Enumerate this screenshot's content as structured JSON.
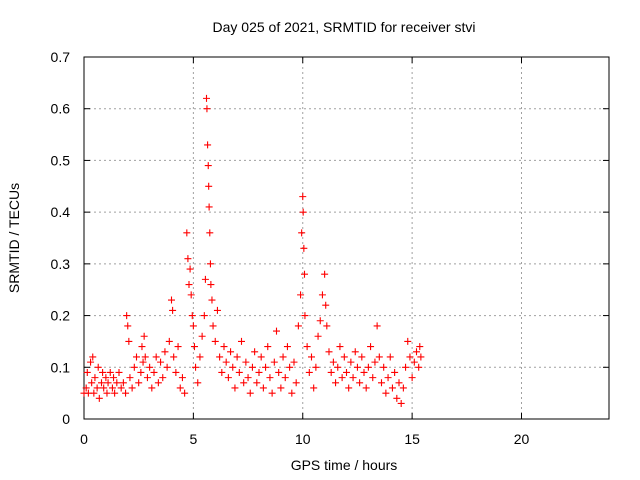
{
  "chart_data": {
    "type": "scatter",
    "title": "Day 025 of 2021, SRMTID for receiver stvi",
    "xlabel": "GPS time / hours",
    "ylabel": "SRMTID / TECUs",
    "xlim": [
      0,
      24
    ],
    "ylim": [
      0,
      0.7
    ],
    "x_ticks": [
      0,
      5,
      10,
      15,
      20
    ],
    "x_tick_labels": [
      "0",
      "5",
      "10",
      "15",
      "20"
    ],
    "y_ticks": [
      0,
      0.1,
      0.2,
      0.3,
      0.4,
      0.5,
      0.6,
      0.7
    ],
    "y_tick_labels": [
      "0",
      "0.1",
      "0.2",
      "0.3",
      "0.4",
      "0.5",
      "0.6",
      "0.7"
    ],
    "grid": true,
    "marker": "plus",
    "color": "#ff0000",
    "series": [
      {
        "name": "SRMTID",
        "points": [
          [
            0.0,
            0.05
          ],
          [
            0.1,
            0.06
          ],
          [
            0.15,
            0.09
          ],
          [
            0.2,
            0.05
          ],
          [
            0.3,
            0.11
          ],
          [
            0.35,
            0.07
          ],
          [
            0.4,
            0.12
          ],
          [
            0.45,
            0.05
          ],
          [
            0.5,
            0.08
          ],
          [
            0.6,
            0.06
          ],
          [
            0.65,
            0.1
          ],
          [
            0.7,
            0.04
          ],
          [
            0.8,
            0.07
          ],
          [
            0.85,
            0.09
          ],
          [
            0.9,
            0.06
          ],
          [
            1.0,
            0.08
          ],
          [
            1.05,
            0.05
          ],
          [
            1.1,
            0.07
          ],
          [
            1.2,
            0.09
          ],
          [
            1.3,
            0.06
          ],
          [
            1.35,
            0.08
          ],
          [
            1.4,
            0.05
          ],
          [
            1.5,
            0.07
          ],
          [
            1.6,
            0.09
          ],
          [
            1.7,
            0.06
          ],
          [
            1.8,
            0.07
          ],
          [
            1.9,
            0.05
          ],
          [
            1.95,
            0.2
          ],
          [
            2.0,
            0.18
          ],
          [
            2.05,
            0.15
          ],
          [
            2.1,
            0.08
          ],
          [
            2.2,
            0.06
          ],
          [
            2.3,
            0.1
          ],
          [
            2.4,
            0.12
          ],
          [
            2.5,
            0.07
          ],
          [
            2.6,
            0.09
          ],
          [
            2.65,
            0.14
          ],
          [
            2.7,
            0.11
          ],
          [
            2.75,
            0.16
          ],
          [
            2.8,
            0.12
          ],
          [
            2.9,
            0.08
          ],
          [
            3.0,
            0.1
          ],
          [
            3.1,
            0.06
          ],
          [
            3.2,
            0.09
          ],
          [
            3.3,
            0.12
          ],
          [
            3.4,
            0.07
          ],
          [
            3.5,
            0.11
          ],
          [
            3.6,
            0.08
          ],
          [
            3.7,
            0.13
          ],
          [
            3.8,
            0.1
          ],
          [
            3.9,
            0.15
          ],
          [
            4.0,
            0.23
          ],
          [
            4.05,
            0.21
          ],
          [
            4.1,
            0.12
          ],
          [
            4.2,
            0.09
          ],
          [
            4.3,
            0.14
          ],
          [
            4.4,
            0.06
          ],
          [
            4.5,
            0.08
          ],
          [
            4.6,
            0.05
          ],
          [
            4.7,
            0.36
          ],
          [
            4.75,
            0.31
          ],
          [
            4.8,
            0.26
          ],
          [
            4.85,
            0.29
          ],
          [
            4.9,
            0.24
          ],
          [
            4.95,
            0.2
          ],
          [
            5.0,
            0.18
          ],
          [
            5.05,
            0.14
          ],
          [
            5.1,
            0.1
          ],
          [
            5.2,
            0.07
          ],
          [
            5.3,
            0.12
          ],
          [
            5.4,
            0.16
          ],
          [
            5.5,
            0.2
          ],
          [
            5.55,
            0.27
          ],
          [
            5.6,
            0.62
          ],
          [
            5.62,
            0.6
          ],
          [
            5.65,
            0.53
          ],
          [
            5.68,
            0.49
          ],
          [
            5.7,
            0.45
          ],
          [
            5.72,
            0.41
          ],
          [
            5.75,
            0.36
          ],
          [
            5.78,
            0.3
          ],
          [
            5.8,
            0.26
          ],
          [
            5.85,
            0.23
          ],
          [
            5.9,
            0.18
          ],
          [
            6.0,
            0.15
          ],
          [
            6.1,
            0.21
          ],
          [
            6.2,
            0.12
          ],
          [
            6.3,
            0.09
          ],
          [
            6.4,
            0.14
          ],
          [
            6.5,
            0.11
          ],
          [
            6.6,
            0.08
          ],
          [
            6.7,
            0.13
          ],
          [
            6.8,
            0.1
          ],
          [
            6.9,
            0.06
          ],
          [
            7.0,
            0.12
          ],
          [
            7.1,
            0.09
          ],
          [
            7.2,
            0.15
          ],
          [
            7.3,
            0.07
          ],
          [
            7.4,
            0.11
          ],
          [
            7.5,
            0.08
          ],
          [
            7.6,
            0.05
          ],
          [
            7.7,
            0.1
          ],
          [
            7.8,
            0.13
          ],
          [
            7.9,
            0.07
          ],
          [
            8.0,
            0.09
          ],
          [
            8.1,
            0.12
          ],
          [
            8.2,
            0.06
          ],
          [
            8.3,
            0.1
          ],
          [
            8.4,
            0.14
          ],
          [
            8.5,
            0.08
          ],
          [
            8.6,
            0.05
          ],
          [
            8.7,
            0.11
          ],
          [
            8.8,
            0.17
          ],
          [
            8.9,
            0.09
          ],
          [
            9.0,
            0.06
          ],
          [
            9.1,
            0.12
          ],
          [
            9.2,
            0.08
          ],
          [
            9.3,
            0.14
          ],
          [
            9.4,
            0.1
          ],
          [
            9.5,
            0.05
          ],
          [
            9.6,
            0.11
          ],
          [
            9.7,
            0.07
          ],
          [
            9.8,
            0.18
          ],
          [
            9.9,
            0.24
          ],
          [
            9.95,
            0.36
          ],
          [
            10.0,
            0.43
          ],
          [
            10.02,
            0.4
          ],
          [
            10.05,
            0.33
          ],
          [
            10.08,
            0.28
          ],
          [
            10.1,
            0.2
          ],
          [
            10.2,
            0.14
          ],
          [
            10.3,
            0.09
          ],
          [
            10.4,
            0.12
          ],
          [
            10.5,
            0.06
          ],
          [
            10.6,
            0.1
          ],
          [
            10.7,
            0.16
          ],
          [
            10.8,
            0.19
          ],
          [
            10.9,
            0.24
          ],
          [
            11.0,
            0.28
          ],
          [
            11.05,
            0.22
          ],
          [
            11.1,
            0.18
          ],
          [
            11.2,
            0.13
          ],
          [
            11.3,
            0.09
          ],
          [
            11.4,
            0.11
          ],
          [
            11.5,
            0.07
          ],
          [
            11.6,
            0.1
          ],
          [
            11.7,
            0.14
          ],
          [
            11.8,
            0.08
          ],
          [
            11.9,
            0.12
          ],
          [
            12.0,
            0.09
          ],
          [
            12.1,
            0.06
          ],
          [
            12.2,
            0.11
          ],
          [
            12.3,
            0.08
          ],
          [
            12.4,
            0.13
          ],
          [
            12.5,
            0.1
          ],
          [
            12.6,
            0.07
          ],
          [
            12.7,
            0.12
          ],
          [
            12.8,
            0.09
          ],
          [
            12.9,
            0.06
          ],
          [
            13.0,
            0.1
          ],
          [
            13.1,
            0.14
          ],
          [
            13.2,
            0.08
          ],
          [
            13.3,
            0.11
          ],
          [
            13.4,
            0.18
          ],
          [
            13.5,
            0.12
          ],
          [
            13.6,
            0.07
          ],
          [
            13.7,
            0.1
          ],
          [
            13.8,
            0.05
          ],
          [
            13.9,
            0.08
          ],
          [
            14.0,
            0.12
          ],
          [
            14.1,
            0.06
          ],
          [
            14.2,
            0.09
          ],
          [
            14.3,
            0.04
          ],
          [
            14.4,
            0.07
          ],
          [
            14.5,
            0.03
          ],
          [
            14.6,
            0.06
          ],
          [
            14.7,
            0.1
          ],
          [
            14.8,
            0.15
          ],
          [
            14.9,
            0.12
          ],
          [
            15.0,
            0.08
          ],
          [
            15.1,
            0.11
          ],
          [
            15.2,
            0.13
          ],
          [
            15.3,
            0.1
          ],
          [
            15.35,
            0.14
          ],
          [
            15.4,
            0.12
          ]
        ]
      }
    ]
  }
}
